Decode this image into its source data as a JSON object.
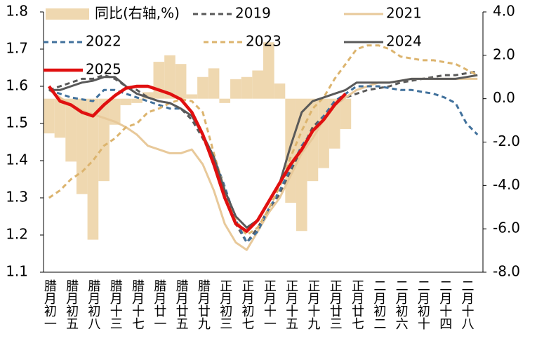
{
  "chart_data": {
    "type": "bar-line",
    "categories": [
      "腊月初一",
      null,
      "腊月初五",
      null,
      "腊月初八",
      null,
      "腊月十三",
      null,
      "腊月十七",
      null,
      "腊月廿一",
      null,
      "腊月廿五",
      null,
      "腊月廿九",
      null,
      "正月初三",
      null,
      "正月初七",
      null,
      "正月十一",
      null,
      "正月十五",
      null,
      "正月十九",
      null,
      "正月廿三",
      null,
      "正月廿七",
      null,
      "二月初二",
      null,
      "二月初六",
      null,
      "二月初十",
      null,
      "二月十四",
      null,
      "二月十八",
      null
    ],
    "series": [
      {
        "name": "同比(右轴,%)",
        "type": "bar",
        "axis": "y2",
        "color": "#efd8b0",
        "values": [
          -1.6,
          -1.8,
          -2.9,
          -4.4,
          -6.5,
          -3.8,
          -1.2,
          -0.3,
          -0.2,
          0.3,
          1.7,
          2.0,
          1.6,
          0.2,
          1.0,
          1.4,
          -0.2,
          0.9,
          1.0,
          1.3,
          2.6,
          0.7,
          -4.8,
          -6.1,
          -3.8,
          -3.2,
          -2.3,
          -1.4,
          null,
          null,
          null,
          null,
          null,
          null,
          null,
          null,
          null,
          null,
          null,
          null
        ]
      },
      {
        "name": "2019",
        "type": "line",
        "color": "#595959",
        "dash": true,
        "values": [
          1.59,
          1.6,
          1.61,
          1.62,
          1.62,
          1.63,
          1.62,
          1.6,
          1.59,
          1.57,
          1.56,
          1.555,
          1.54,
          1.51,
          1.46,
          1.4,
          1.32,
          1.23,
          1.18,
          1.22,
          1.27,
          1.31,
          1.37,
          1.43,
          1.49,
          1.52,
          1.55,
          1.57,
          1.58,
          1.59,
          1.595,
          1.6,
          1.61,
          1.615,
          1.62,
          1.625,
          1.63,
          1.63,
          1.635,
          1.64
        ]
      },
      {
        "name": "2021",
        "type": "line",
        "color": "#e8c99a",
        "dash": false,
        "values": [
          1.59,
          1.57,
          1.55,
          1.535,
          1.525,
          1.515,
          1.505,
          1.49,
          1.47,
          1.44,
          1.43,
          1.42,
          1.42,
          1.43,
          1.39,
          1.32,
          1.23,
          1.18,
          1.16,
          1.21,
          1.26,
          1.3,
          1.36,
          1.42,
          1.46,
          1.51,
          1.55,
          1.57,
          1.59,
          1.6,
          1.61,
          1.61,
          1.615,
          1.62,
          1.62,
          1.62,
          1.62,
          1.62,
          1.62,
          1.62
        ]
      },
      {
        "name": "2022",
        "type": "line",
        "color": "#41719c",
        "dash": true,
        "values": [
          1.59,
          1.58,
          1.57,
          1.565,
          1.56,
          1.59,
          1.59,
          1.58,
          1.57,
          1.56,
          1.55,
          1.54,
          1.54,
          1.52,
          1.47,
          1.41,
          1.33,
          1.24,
          1.18,
          1.21,
          1.27,
          1.32,
          1.38,
          1.44,
          1.48,
          1.52,
          1.56,
          1.58,
          1.6,
          1.6,
          1.6,
          1.595,
          1.59,
          1.59,
          1.585,
          1.58,
          1.57,
          1.555,
          1.5,
          1.47
        ]
      },
      {
        "name": "2023",
        "type": "line",
        "color": "#dcb46e",
        "dash": true,
        "values": [
          1.3,
          1.32,
          1.35,
          1.37,
          1.4,
          1.44,
          1.46,
          1.49,
          1.5,
          1.53,
          1.54,
          1.555,
          1.565,
          1.56,
          1.53,
          1.42,
          1.32,
          1.24,
          1.2,
          1.22,
          1.27,
          1.33,
          1.41,
          1.48,
          1.54,
          1.57,
          1.62,
          1.66,
          1.7,
          1.71,
          1.71,
          1.7,
          1.68,
          1.675,
          1.67,
          1.67,
          1.665,
          1.66,
          1.645,
          1.63
        ]
      },
      {
        "name": "2024",
        "type": "line",
        "color": "#595959",
        "dash": false,
        "values": [
          1.59,
          1.59,
          1.6,
          1.61,
          1.615,
          1.625,
          1.625,
          1.6,
          1.58,
          1.57,
          1.56,
          1.555,
          1.54,
          1.52,
          1.47,
          1.41,
          1.32,
          1.25,
          1.22,
          1.24,
          1.29,
          1.34,
          1.44,
          1.53,
          1.56,
          1.57,
          1.58,
          1.59,
          1.61,
          1.61,
          1.61,
          1.61,
          1.615,
          1.62,
          1.62,
          1.62,
          1.62,
          1.62,
          1.625,
          1.63
        ]
      },
      {
        "name": "2025",
        "type": "line",
        "color": "#e01010",
        "dash": false,
        "values": [
          1.6,
          1.56,
          1.55,
          1.53,
          1.52,
          1.55,
          1.575,
          1.595,
          1.6,
          1.6,
          1.59,
          1.58,
          1.565,
          1.53,
          1.47,
          1.39,
          1.3,
          1.23,
          1.21,
          1.24,
          1.29,
          1.34,
          1.39,
          1.43,
          1.48,
          1.51,
          1.55,
          1.58,
          null,
          null,
          null,
          null,
          null,
          null,
          null,
          null,
          null,
          null,
          null,
          null
        ]
      }
    ],
    "ylim": [
      1.1,
      1.8
    ],
    "yticks": [
      1.1,
      1.2,
      1.3,
      1.4,
      1.5,
      1.6,
      1.7,
      1.8
    ],
    "y2lim": [
      -8,
      4
    ],
    "y2ticks": [
      {
        "value": -8,
        "label": "-8.0"
      },
      {
        "value": -6,
        "label": "-6.0"
      },
      {
        "value": -4,
        "label": "-4.0"
      },
      {
        "value": -2,
        "label": "-2.0"
      },
      {
        "value": 0,
        "label": "0.0"
      },
      {
        "value": 2,
        "label": "2.0"
      },
      {
        "value": 4,
        "label": "4.0"
      }
    ],
    "grid": false
  }
}
